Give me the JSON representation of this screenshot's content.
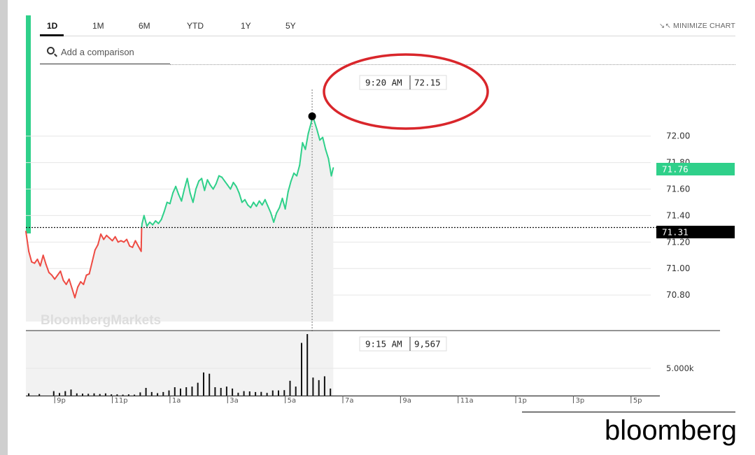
{
  "tabs": [
    {
      "label": "1D",
      "active": true
    },
    {
      "label": "1M",
      "active": false
    },
    {
      "label": "6M",
      "active": false
    },
    {
      "label": "YTD",
      "active": false
    },
    {
      "label": "1Y",
      "active": false
    },
    {
      "label": "5Y",
      "active": false
    }
  ],
  "minimize_label": "MINIMIZE CHART",
  "comparison_placeholder": "Add a comparison",
  "watermark": "BloombergMarkets",
  "source_label": "bloomberg",
  "colors": {
    "up": "#2fd08a",
    "down": "#ee4b43",
    "annotation_circle": "#d9262b",
    "prev_close_tag": "#000000",
    "current_tag": "#2fd08a"
  },
  "chart_data": {
    "type": "line",
    "price": {
      "current": "71.76",
      "previous_close": "71.31",
      "previous_close_value": 71.31,
      "y_ticks": [
        "72.00",
        "71.80",
        "71.60",
        "71.40",
        "71.20",
        "71.00",
        "70.80"
      ],
      "ylim": [
        70.6,
        72.5
      ],
      "series": [
        {
          "t": 0,
          "v": 71.28
        },
        {
          "t": 3,
          "v": 71.13
        },
        {
          "t": 6,
          "v": 71.05
        },
        {
          "t": 9,
          "v": 71.04
        },
        {
          "t": 12,
          "v": 71.07
        },
        {
          "t": 15,
          "v": 71.02
        },
        {
          "t": 18,
          "v": 71.1
        },
        {
          "t": 21,
          "v": 71.03
        },
        {
          "t": 24,
          "v": 70.97
        },
        {
          "t": 27,
          "v": 70.95
        },
        {
          "t": 30,
          "v": 70.92
        },
        {
          "t": 33,
          "v": 70.95
        },
        {
          "t": 36,
          "v": 70.98
        },
        {
          "t": 39,
          "v": 70.91
        },
        {
          "t": 42,
          "v": 70.88
        },
        {
          "t": 45,
          "v": 70.92
        },
        {
          "t": 48,
          "v": 70.85
        },
        {
          "t": 51,
          "v": 70.78
        },
        {
          "t": 54,
          "v": 70.86
        },
        {
          "t": 57,
          "v": 70.9
        },
        {
          "t": 60,
          "v": 70.88
        },
        {
          "t": 63,
          "v": 70.95
        },
        {
          "t": 66,
          "v": 70.96
        },
        {
          "t": 69,
          "v": 71.05
        },
        {
          "t": 72,
          "v": 71.14
        },
        {
          "t": 75,
          "v": 71.18
        },
        {
          "t": 78,
          "v": 71.26
        },
        {
          "t": 81,
          "v": 71.22
        },
        {
          "t": 84,
          "v": 71.25
        },
        {
          "t": 87,
          "v": 71.23
        },
        {
          "t": 90,
          "v": 71.21
        },
        {
          "t": 93,
          "v": 71.24
        },
        {
          "t": 96,
          "v": 71.2
        },
        {
          "t": 99,
          "v": 71.21
        },
        {
          "t": 102,
          "v": 71.2
        },
        {
          "t": 105,
          "v": 71.22
        },
        {
          "t": 108,
          "v": 71.17
        },
        {
          "t": 111,
          "v": 71.16
        },
        {
          "t": 114,
          "v": 71.21
        },
        {
          "t": 117,
          "v": 71.17
        },
        {
          "t": 120,
          "v": 71.13
        },
        {
          "t": 120.5,
          "v": 71.31
        },
        {
          "t": 121,
          "v": 71.34
        },
        {
          "t": 123,
          "v": 71.4
        },
        {
          "t": 126,
          "v": 71.32
        },
        {
          "t": 129,
          "v": 71.35
        },
        {
          "t": 132,
          "v": 71.33
        },
        {
          "t": 135,
          "v": 71.36
        },
        {
          "t": 138,
          "v": 71.34
        },
        {
          "t": 141,
          "v": 71.37
        },
        {
          "t": 144,
          "v": 71.43
        },
        {
          "t": 147,
          "v": 71.5
        },
        {
          "t": 150,
          "v": 71.49
        },
        {
          "t": 153,
          "v": 71.57
        },
        {
          "t": 156,
          "v": 71.62
        },
        {
          "t": 159,
          "v": 71.56
        },
        {
          "t": 162,
          "v": 71.51
        },
        {
          "t": 165,
          "v": 71.6
        },
        {
          "t": 168,
          "v": 71.68
        },
        {
          "t": 171,
          "v": 71.57
        },
        {
          "t": 174,
          "v": 71.5
        },
        {
          "t": 177,
          "v": 71.6
        },
        {
          "t": 180,
          "v": 71.66
        },
        {
          "t": 183,
          "v": 71.68
        },
        {
          "t": 186,
          "v": 71.59
        },
        {
          "t": 189,
          "v": 71.67
        },
        {
          "t": 192,
          "v": 71.63
        },
        {
          "t": 195,
          "v": 71.6
        },
        {
          "t": 198,
          "v": 71.64
        },
        {
          "t": 201,
          "v": 71.7
        },
        {
          "t": 204,
          "v": 71.69
        },
        {
          "t": 207,
          "v": 71.66
        },
        {
          "t": 210,
          "v": 71.63
        },
        {
          "t": 213,
          "v": 71.6
        },
        {
          "t": 216,
          "v": 71.65
        },
        {
          "t": 219,
          "v": 71.62
        },
        {
          "t": 222,
          "v": 71.57
        },
        {
          "t": 225,
          "v": 71.5
        },
        {
          "t": 228,
          "v": 71.52
        },
        {
          "t": 231,
          "v": 71.48
        },
        {
          "t": 234,
          "v": 71.46
        },
        {
          "t": 237,
          "v": 71.5
        },
        {
          "t": 240,
          "v": 71.47
        },
        {
          "t": 243,
          "v": 71.51
        },
        {
          "t": 246,
          "v": 71.48
        },
        {
          "t": 249,
          "v": 71.52
        },
        {
          "t": 252,
          "v": 71.47
        },
        {
          "t": 255,
          "v": 71.42
        },
        {
          "t": 258,
          "v": 71.35
        },
        {
          "t": 261,
          "v": 71.42
        },
        {
          "t": 264,
          "v": 71.46
        },
        {
          "t": 267,
          "v": 71.53
        },
        {
          "t": 270,
          "v": 71.45
        },
        {
          "t": 273,
          "v": 71.58
        },
        {
          "t": 276,
          "v": 71.66
        },
        {
          "t": 279,
          "v": 71.72
        },
        {
          "t": 282,
          "v": 71.7
        },
        {
          "t": 285,
          "v": 71.78
        },
        {
          "t": 288,
          "v": 71.95
        },
        {
          "t": 291,
          "v": 71.9
        },
        {
          "t": 294,
          "v": 72.02
        },
        {
          "t": 297,
          "v": 72.1
        },
        {
          "t": 298,
          "v": 72.15
        },
        {
          "t": 300,
          "v": 72.12
        },
        {
          "t": 303,
          "v": 72.05
        },
        {
          "t": 306,
          "v": 71.97
        },
        {
          "t": 309,
          "v": 71.99
        },
        {
          "t": 312,
          "v": 71.9
        },
        {
          "t": 315,
          "v": 71.83
        },
        {
          "t": 318,
          "v": 71.7
        },
        {
          "t": 320,
          "v": 71.76
        }
      ]
    },
    "volume": {
      "y_tick": "5.000k",
      "ylim": [
        0,
        10000
      ],
      "bars": [
        {
          "t": 3,
          "v": 350
        },
        {
          "t": 14,
          "v": 250
        },
        {
          "t": 29,
          "v": 700
        },
        {
          "t": 35,
          "v": 400
        },
        {
          "t": 41,
          "v": 700
        },
        {
          "t": 47,
          "v": 950
        },
        {
          "t": 53,
          "v": 350
        },
        {
          "t": 59,
          "v": 300
        },
        {
          "t": 65,
          "v": 280
        },
        {
          "t": 71,
          "v": 350
        },
        {
          "t": 77,
          "v": 250
        },
        {
          "t": 83,
          "v": 350
        },
        {
          "t": 89,
          "v": 200
        },
        {
          "t": 95,
          "v": 200
        },
        {
          "t": 101,
          "v": 150
        },
        {
          "t": 107,
          "v": 200
        },
        {
          "t": 113,
          "v": 150
        },
        {
          "t": 119,
          "v": 500
        },
        {
          "t": 125,
          "v": 1200
        },
        {
          "t": 131,
          "v": 550
        },
        {
          "t": 137,
          "v": 380
        },
        {
          "t": 143,
          "v": 550
        },
        {
          "t": 149,
          "v": 800
        },
        {
          "t": 155,
          "v": 1300
        },
        {
          "t": 161,
          "v": 1100
        },
        {
          "t": 167,
          "v": 1300
        },
        {
          "t": 173,
          "v": 1400
        },
        {
          "t": 179,
          "v": 2000
        },
        {
          "t": 185,
          "v": 3600
        },
        {
          "t": 191,
          "v": 3400
        },
        {
          "t": 197,
          "v": 1300
        },
        {
          "t": 203,
          "v": 1200
        },
        {
          "t": 209,
          "v": 1400
        },
        {
          "t": 215,
          "v": 1100
        },
        {
          "t": 221,
          "v": 450
        },
        {
          "t": 227,
          "v": 700
        },
        {
          "t": 233,
          "v": 650
        },
        {
          "t": 239,
          "v": 550
        },
        {
          "t": 245,
          "v": 580
        },
        {
          "t": 251,
          "v": 420
        },
        {
          "t": 257,
          "v": 800
        },
        {
          "t": 263,
          "v": 800
        },
        {
          "t": 269,
          "v": 850
        },
        {
          "t": 275,
          "v": 2300
        },
        {
          "t": 281,
          "v": 1400
        },
        {
          "t": 287,
          "v": 8200
        },
        {
          "t": 293,
          "v": 9567
        },
        {
          "t": 299,
          "v": 2800
        },
        {
          "t": 305,
          "v": 2400
        },
        {
          "t": 311,
          "v": 3000
        },
        {
          "t": 317,
          "v": 1100
        }
      ]
    },
    "x_ticks": [
      {
        "label": "9p",
        "t": 30
      },
      {
        "label": "11p",
        "t": 90
      },
      {
        "label": "1a",
        "t": 150
      },
      {
        "label": "3a",
        "t": 210
      },
      {
        "label": "5a",
        "t": 270
      },
      {
        "label": "7a",
        "t": 330
      },
      {
        "label": "9a",
        "t": 390
      },
      {
        "label": "11a",
        "t": 450
      },
      {
        "label": "1p",
        "t": 510
      },
      {
        "label": "3p",
        "t": 570
      },
      {
        "label": "5p",
        "t": 630
      }
    ],
    "xlim": [
      0,
      660
    ],
    "price_tooltip": {
      "time": "9:20 AM",
      "value": "72.15",
      "t": 298,
      "v": 72.15
    },
    "volume_tooltip": {
      "time": "9:15 AM",
      "value": "9,567",
      "t": 293
    }
  }
}
